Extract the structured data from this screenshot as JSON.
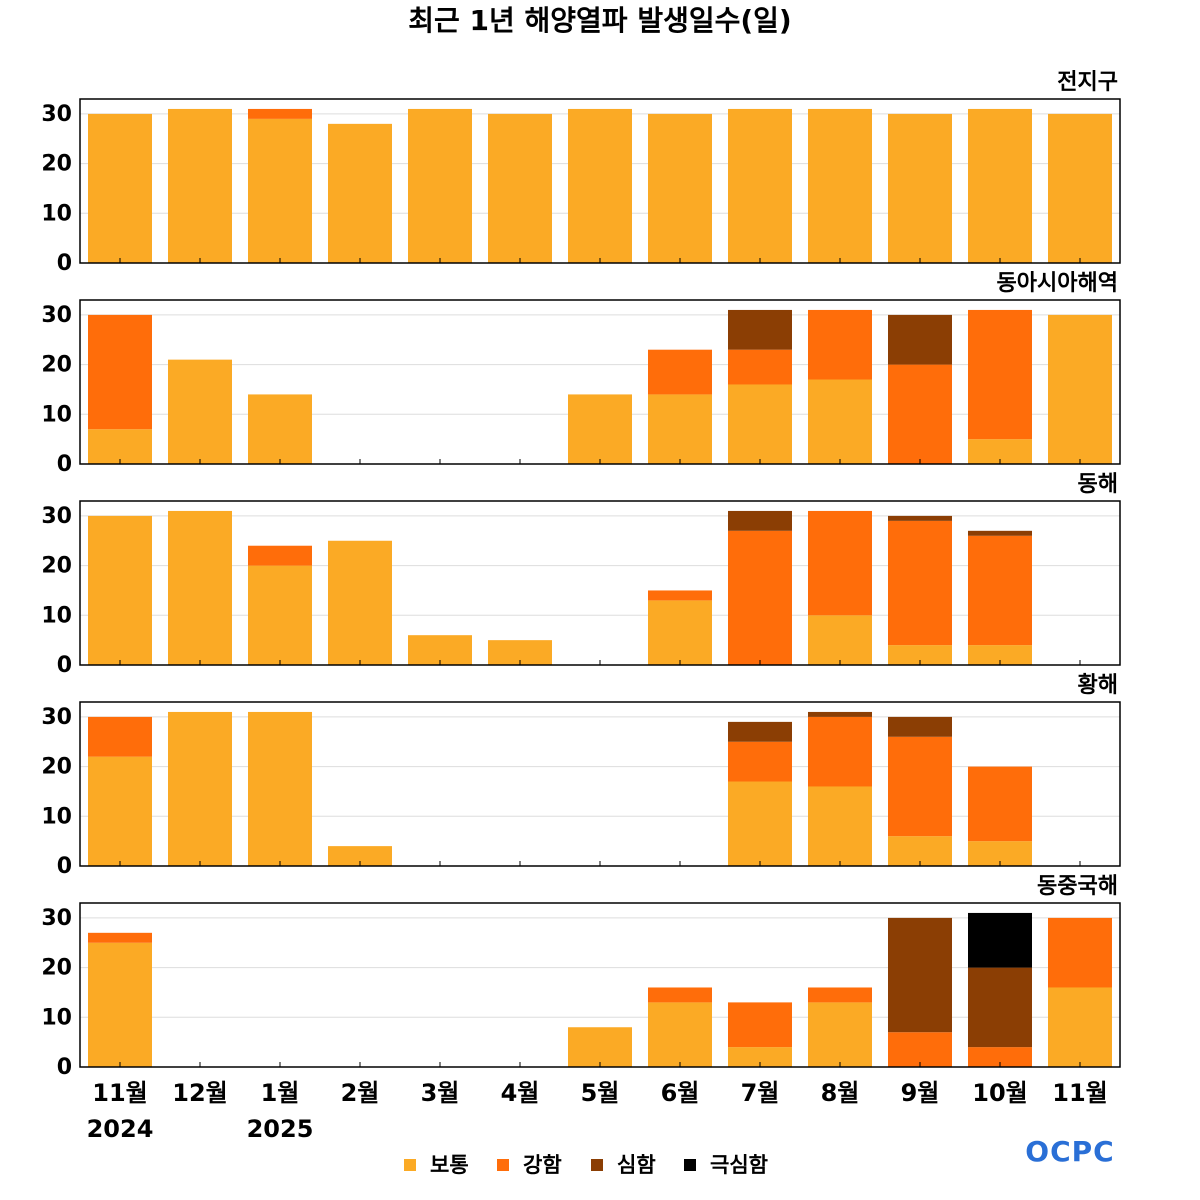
{
  "title": "최근 1년 해양열파 발생일수(일)",
  "logo": "OCPC",
  "chart_data": [
    {
      "type": "bar",
      "stacked": true,
      "title": "전지구",
      "ylim": [
        0,
        33
      ],
      "yticks": [
        0,
        10,
        20,
        30
      ],
      "grid": true,
      "series": [
        {
          "name": "보통",
          "color": "#fbaa25",
          "values": [
            30,
            31,
            29,
            28,
            31,
            30,
            31,
            30,
            31,
            31,
            30,
            31,
            30
          ]
        },
        {
          "name": "강함",
          "color": "#ff6d0a",
          "values": [
            0,
            0,
            2,
            0,
            0,
            0,
            0,
            0,
            0,
            0,
            0,
            0,
            0
          ]
        },
        {
          "name": "심함",
          "color": "#8b3e04",
          "values": [
            0,
            0,
            0,
            0,
            0,
            0,
            0,
            0,
            0,
            0,
            0,
            0,
            0
          ]
        },
        {
          "name": "극심함",
          "color": "#000000",
          "values": [
            0,
            0,
            0,
            0,
            0,
            0,
            0,
            0,
            0,
            0,
            0,
            0,
            0
          ]
        }
      ]
    },
    {
      "type": "bar",
      "stacked": true,
      "title": "동아시아해역",
      "ylim": [
        0,
        33
      ],
      "yticks": [
        0,
        10,
        20,
        30
      ],
      "grid": true,
      "series": [
        {
          "name": "보통",
          "color": "#fbaa25",
          "values": [
            7,
            21,
            14,
            0,
            0,
            0,
            14,
            14,
            16,
            17,
            0,
            5,
            30
          ]
        },
        {
          "name": "강함",
          "color": "#ff6d0a",
          "values": [
            23,
            0,
            0,
            0,
            0,
            0,
            0,
            9,
            7,
            14,
            20,
            26,
            0
          ]
        },
        {
          "name": "심함",
          "color": "#8b3e04",
          "values": [
            0,
            0,
            0,
            0,
            0,
            0,
            0,
            0,
            8,
            0,
            10,
            0,
            0
          ]
        },
        {
          "name": "극심함",
          "color": "#000000",
          "values": [
            0,
            0,
            0,
            0,
            0,
            0,
            0,
            0,
            0,
            0,
            0,
            0,
            0
          ]
        }
      ]
    },
    {
      "type": "bar",
      "stacked": true,
      "title": "동해",
      "ylim": [
        0,
        33
      ],
      "yticks": [
        0,
        10,
        20,
        30
      ],
      "grid": true,
      "series": [
        {
          "name": "보통",
          "color": "#fbaa25",
          "values": [
            30,
            31,
            20,
            25,
            6,
            5,
            0,
            13,
            0,
            10,
            4,
            4,
            0
          ]
        },
        {
          "name": "강함",
          "color": "#ff6d0a",
          "values": [
            0,
            0,
            4,
            0,
            0,
            0,
            0,
            2,
            27,
            21,
            25,
            22,
            0
          ]
        },
        {
          "name": "심함",
          "color": "#8b3e04",
          "values": [
            0,
            0,
            0,
            0,
            0,
            0,
            0,
            0,
            4,
            0,
            1,
            1,
            0
          ]
        },
        {
          "name": "극심함",
          "color": "#000000",
          "values": [
            0,
            0,
            0,
            0,
            0,
            0,
            0,
            0,
            0,
            0,
            0,
            0,
            0
          ]
        }
      ]
    },
    {
      "type": "bar",
      "stacked": true,
      "title": "황해",
      "ylim": [
        0,
        33
      ],
      "yticks": [
        0,
        10,
        20,
        30
      ],
      "grid": true,
      "series": [
        {
          "name": "보통",
          "color": "#fbaa25",
          "values": [
            22,
            31,
            31,
            4,
            0,
            0,
            0,
            0,
            17,
            16,
            6,
            5,
            0
          ]
        },
        {
          "name": "강함",
          "color": "#ff6d0a",
          "values": [
            8,
            0,
            0,
            0,
            0,
            0,
            0,
            0,
            8,
            14,
            20,
            15,
            0
          ]
        },
        {
          "name": "심함",
          "color": "#8b3e04",
          "values": [
            0,
            0,
            0,
            0,
            0,
            0,
            0,
            0,
            4,
            1,
            4,
            0,
            0
          ]
        },
        {
          "name": "극심함",
          "color": "#000000",
          "values": [
            0,
            0,
            0,
            0,
            0,
            0,
            0,
            0,
            0,
            0,
            0,
            0,
            0
          ]
        }
      ]
    },
    {
      "type": "bar",
      "stacked": true,
      "title": "동중국해",
      "ylim": [
        0,
        33
      ],
      "yticks": [
        0,
        10,
        20,
        30
      ],
      "grid": true,
      "categories": [
        "11월",
        "12월",
        "1월",
        "2월",
        "3월",
        "4월",
        "5월",
        "6월",
        "7월",
        "8월",
        "9월",
        "10월",
        "11월"
      ],
      "x_sublabels": [
        "2024",
        null,
        "2025",
        null,
        null,
        null,
        null,
        null,
        null,
        null,
        null,
        null,
        null
      ],
      "series": [
        {
          "name": "보통",
          "color": "#fbaa25",
          "values": [
            25,
            0,
            0,
            0,
            0,
            0,
            8,
            13,
            4,
            13,
            0,
            0,
            16
          ]
        },
        {
          "name": "강함",
          "color": "#ff6d0a",
          "values": [
            2,
            0,
            0,
            0,
            0,
            0,
            0,
            3,
            9,
            3,
            7,
            4,
            14
          ]
        },
        {
          "name": "심함",
          "color": "#8b3e04",
          "values": [
            0,
            0,
            0,
            0,
            0,
            0,
            0,
            0,
            0,
            0,
            23,
            16,
            0
          ]
        },
        {
          "name": "극심함",
          "color": "#000000",
          "values": [
            0,
            0,
            0,
            0,
            0,
            0,
            0,
            0,
            0,
            0,
            0,
            11,
            0
          ]
        }
      ]
    }
  ]
}
